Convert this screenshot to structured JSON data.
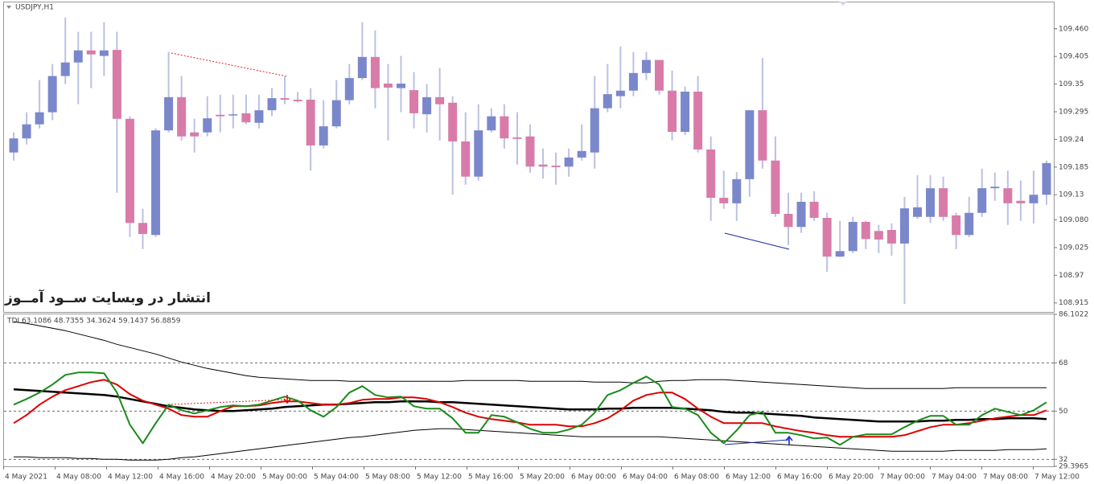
{
  "chart_data": [
    {
      "type": "candlestick",
      "title": "USDJPY,H1",
      "annotation": "انتشار در وبسایت ســود آمــوز",
      "open": [
        109.214,
        109.242,
        109.27,
        109.294,
        109.366,
        109.393,
        109.417,
        109.406,
        109.418,
        109.281,
        109.074,
        109.05,
        109.258,
        109.324,
        109.254,
        109.254,
        109.289,
        109.289,
        109.292,
        109.273,
        109.298,
        109.322,
        109.319,
        109.319,
        109.228,
        109.266,
        109.318,
        109.362,
        109.404,
        109.351,
        109.342,
        109.338,
        109.29,
        109.324,
        109.313,
        109.236,
        109.166,
        109.258,
        109.286,
        109.244,
        109.246,
        109.19,
        109.188,
        109.186,
        109.204,
        109.214,
        109.302,
        109.326,
        109.337,
        109.372,
        109.398,
        109.337,
        109.255,
        109.335,
        109.22,
        109.124,
        109.113,
        109.161,
        109.298,
        109.198,
        109.092,
        109.066,
        109.116,
        109.084,
        109.007,
        109.018,
        109.076,
        109.058,
        109.06,
        109.033,
        109.086,
        109.086,
        109.143,
        109.089,
        109.05,
        109.094,
        109.143,
        109.143,
        109.118,
        109.113,
        109.13
      ],
      "high": [
        109.254,
        109.294,
        109.358,
        109.39,
        109.482,
        109.454,
        109.454,
        109.473,
        109.454,
        109.286,
        109.102,
        109.262,
        109.414,
        109.366,
        109.281,
        109.326,
        109.329,
        109.329,
        109.329,
        109.329,
        109.342,
        109.366,
        109.334,
        109.342,
        109.318,
        109.358,
        109.39,
        109.473,
        109.457,
        109.39,
        109.406,
        109.374,
        109.35,
        109.382,
        109.326,
        109.294,
        109.31,
        109.302,
        109.31,
        109.294,
        109.27,
        109.222,
        109.214,
        109.222,
        109.27,
        109.366,
        109.39,
        109.425,
        109.414,
        109.414,
        109.398,
        109.377,
        109.345,
        109.366,
        109.246,
        109.178,
        109.175,
        109.298,
        109.402,
        109.246,
        109.134,
        109.134,
        109.137,
        109.094,
        109.078,
        109.086,
        109.078,
        109.07,
        109.073,
        109.126,
        109.169,
        109.169,
        109.166,
        109.094,
        109.126,
        109.182,
        109.174,
        109.178,
        109.158,
        109.178,
        109.198
      ],
      "low": [
        109.198,
        109.23,
        109.262,
        109.278,
        109.35,
        109.31,
        109.342,
        109.366,
        109.134,
        109.046,
        109.022,
        109.046,
        109.254,
        109.238,
        109.214,
        109.246,
        109.254,
        109.262,
        109.27,
        109.262,
        109.286,
        109.31,
        109.313,
        109.178,
        109.222,
        109.262,
        109.31,
        109.358,
        109.302,
        109.238,
        109.294,
        109.262,
        109.254,
        109.238,
        109.13,
        109.15,
        109.158,
        109.254,
        109.222,
        109.19,
        109.174,
        109.162,
        109.15,
        109.166,
        109.198,
        109.182,
        109.294,
        109.302,
        109.326,
        109.358,
        109.329,
        109.238,
        109.249,
        109.214,
        109.078,
        109.102,
        109.078,
        109.126,
        109.182,
        109.086,
        109.03,
        109.054,
        109.078,
        108.977,
        109.006,
        109.014,
        109.022,
        109.014,
        109.009,
        108.913,
        109.082,
        109.074,
        109.078,
        109.022,
        109.046,
        109.086,
        109.118,
        109.07,
        109.078,
        109.073,
        109.11
      ],
      "close": [
        109.242,
        109.27,
        109.294,
        109.366,
        109.393,
        109.417,
        109.409,
        109.417,
        109.281,
        109.074,
        109.052,
        109.258,
        109.324,
        109.246,
        109.246,
        109.282,
        109.286,
        109.29,
        109.274,
        109.298,
        109.322,
        109.319,
        109.316,
        109.228,
        109.266,
        109.318,
        109.362,
        109.404,
        109.342,
        109.343,
        109.351,
        109.292,
        109.324,
        109.31,
        109.236,
        109.166,
        109.258,
        109.286,
        109.242,
        109.241,
        109.186,
        109.186,
        109.185,
        109.204,
        109.217,
        109.302,
        109.33,
        109.337,
        109.372,
        109.398,
        109.337,
        109.255,
        109.335,
        109.22,
        109.124,
        109.113,
        109.161,
        109.298,
        109.198,
        109.092,
        109.066,
        109.116,
        109.084,
        109.007,
        109.018,
        109.076,
        109.042,
        109.041,
        109.033,
        109.103,
        109.105,
        109.143,
        109.086,
        109.05,
        109.094,
        109.143,
        109.146,
        109.113,
        109.113,
        109.13,
        109.193
      ],
      "bull_color": "#7b87cb",
      "bear_color": "#d97ba8",
      "wick_color": "#bcc1e2",
      "ylim": [
        108.897,
        109.514
      ],
      "yticks": [
        109.46,
        109.405,
        109.35,
        109.295,
        109.24,
        109.185,
        109.13,
        109.08,
        109.025,
        108.97,
        108.915
      ],
      "yticks_labels_fixed": [
        {
          "value": 109.46,
          "label": "109.460"
        },
        {
          "value": 109.08,
          "label": "109.080"
        }
      ]
    },
    {
      "type": "line",
      "title": "TDI 63.1086 48.7355 34.3624 59.1437 56.8859",
      "series": [
        {
          "color": "#000000",
          "width": 1,
          "values": [
            83.3,
            82.7,
            81.8,
            80.9,
            80.0,
            78.8,
            77.6,
            76.4,
            74.9,
            73.7,
            72.5,
            71.3,
            69.8,
            68.3,
            67.1,
            65.9,
            65.0,
            64.1,
            63.2,
            62.6,
            62.3,
            62.0,
            61.7,
            61.4,
            61.4,
            61.4,
            61.1,
            61.1,
            61.1,
            61.1,
            61.1,
            61.1,
            61.1,
            61.1,
            61.1,
            61.4,
            61.4,
            61.4,
            61.4,
            61.4,
            61.1,
            61.1,
            61.1,
            61.1,
            61.1,
            60.8,
            60.8,
            60.8,
            60.5,
            60.5,
            61.1,
            61.4,
            61.4,
            61.7,
            61.7,
            61.7,
            61.4,
            61.1,
            60.8,
            60.5,
            60.2,
            59.9,
            59.6,
            59.3,
            59.0,
            58.7,
            58.4,
            58.4,
            58.4,
            58.4,
            58.4,
            58.4,
            58.4,
            58.7,
            58.7,
            58.7,
            58.7,
            58.7,
            58.7,
            58.7,
            58.7
          ]
        },
        {
          "color": "#000000",
          "width": 1,
          "values": [
            32.9,
            32.9,
            32.6,
            32.6,
            32.6,
            32.3,
            32.3,
            32.0,
            32.0,
            31.7,
            31.7,
            31.7,
            32.0,
            32.6,
            32.9,
            33.5,
            34.1,
            34.7,
            35.3,
            35.9,
            36.5,
            37.1,
            37.7,
            38.3,
            38.9,
            39.5,
            40.1,
            40.4,
            41.0,
            41.6,
            42.2,
            42.8,
            43.1,
            43.4,
            43.4,
            43.1,
            42.8,
            42.5,
            42.2,
            41.9,
            41.6,
            41.3,
            41.0,
            40.7,
            40.4,
            40.4,
            40.4,
            40.4,
            40.4,
            40.4,
            40.4,
            40.1,
            39.8,
            39.5,
            39.2,
            38.9,
            38.6,
            38.3,
            38.0,
            37.7,
            37.4,
            37.1,
            36.8,
            36.5,
            36.2,
            35.9,
            35.6,
            35.3,
            35.0,
            35.0,
            35.0,
            35.0,
            35.0,
            35.3,
            35.3,
            35.3,
            35.3,
            35.6,
            35.6,
            35.6,
            35.9
          ]
        },
        {
          "color": "#000000",
          "width": 2.5,
          "values": [
            58.1,
            57.8,
            57.5,
            57.2,
            56.9,
            56.6,
            56.3,
            56.0,
            55.4,
            54.5,
            53.6,
            52.7,
            51.8,
            51.2,
            50.6,
            50.3,
            50.0,
            50.0,
            50.3,
            50.6,
            50.9,
            51.5,
            51.8,
            52.1,
            52.4,
            52.4,
            52.7,
            53.0,
            53.3,
            53.3,
            53.6,
            53.6,
            53.6,
            53.3,
            53.3,
            53.0,
            52.7,
            52.4,
            52.1,
            51.8,
            51.5,
            51.2,
            50.9,
            50.6,
            50.6,
            50.6,
            50.9,
            50.9,
            51.2,
            51.2,
            51.2,
            51.2,
            50.9,
            50.6,
            50.3,
            49.7,
            49.4,
            49.4,
            49.1,
            48.8,
            48.5,
            48.2,
            47.6,
            47.3,
            47.0,
            46.7,
            46.4,
            46.1,
            46.1,
            46.1,
            46.1,
            46.4,
            46.4,
            46.7,
            46.7,
            47.0,
            47.0,
            47.3,
            47.3,
            47.3,
            47.0
          ]
        },
        {
          "color": "#dd0000",
          "width": 2,
          "values": [
            45.5,
            48.5,
            52.4,
            55.4,
            57.8,
            59.3,
            60.8,
            61.7,
            59.9,
            56.3,
            53.9,
            52.4,
            50.9,
            48.5,
            47.9,
            47.9,
            50.0,
            51.8,
            51.8,
            52.1,
            53.0,
            53.6,
            53.6,
            53.0,
            52.4,
            52.4,
            53.0,
            54.2,
            54.5,
            54.5,
            55.1,
            55.1,
            54.5,
            53.3,
            51.5,
            49.4,
            47.9,
            47.0,
            46.4,
            45.8,
            44.9,
            44.9,
            44.9,
            44.3,
            44.3,
            45.5,
            47.3,
            50.3,
            53.9,
            56.0,
            56.9,
            56.9,
            54.5,
            50.9,
            47.9,
            45.5,
            45.5,
            45.5,
            45.5,
            44.3,
            43.4,
            42.5,
            41.9,
            41.0,
            40.4,
            40.4,
            40.4,
            40.4,
            40.4,
            41.0,
            42.5,
            44.0,
            44.9,
            44.9,
            45.5,
            46.4,
            47.3,
            47.9,
            48.5,
            48.5,
            50.3
          ]
        },
        {
          "color": "#1b8a1b",
          "width": 2,
          "values": [
            52.4,
            54.5,
            56.9,
            59.9,
            63.5,
            64.4,
            64.4,
            64.1,
            56.9,
            44.9,
            38.0,
            45.5,
            52.4,
            50.3,
            49.1,
            50.3,
            51.5,
            52.1,
            51.8,
            52.4,
            53.9,
            55.4,
            53.9,
            50.3,
            47.9,
            51.5,
            56.9,
            59.3,
            56.0,
            55.1,
            55.4,
            51.8,
            50.9,
            50.9,
            47.3,
            41.9,
            41.9,
            48.5,
            47.9,
            45.8,
            43.4,
            41.9,
            41.9,
            43.1,
            44.9,
            49.4,
            56.0,
            57.8,
            60.5,
            62.9,
            59.9,
            51.5,
            50.9,
            48.5,
            41.9,
            38.0,
            42.8,
            48.5,
            49.7,
            41.9,
            41.9,
            41.0,
            39.8,
            40.1,
            37.4,
            40.4,
            41.3,
            41.3,
            41.3,
            44.0,
            46.4,
            48.2,
            48.2,
            44.9,
            44.9,
            48.5,
            50.9,
            49.7,
            48.5,
            50.3,
            53.3
          ]
        }
      ],
      "ylim": [
        29.3965,
        86.1022
      ],
      "yticks": [
        86.1022,
        68,
        50,
        32,
        29.3965
      ],
      "xtick_labels": [
        "4 May 2021",
        "4 May 08:00",
        "4 May 12:00",
        "4 May 16:00",
        "4 May 20:00",
        "5 May 00:00",
        "5 May 04:00",
        "5 May 08:00",
        "5 May 12:00",
        "5 May 16:00",
        "5 May 20:00",
        "6 May 00:00",
        "6 May 04:00",
        "6 May 08:00",
        "6 May 12:00",
        "6 May 16:00",
        "6 May 20:00",
        "7 May 00:00",
        "7 May 04:00",
        "7 May 08:00",
        "7 May 12:00"
      ]
    }
  ]
}
